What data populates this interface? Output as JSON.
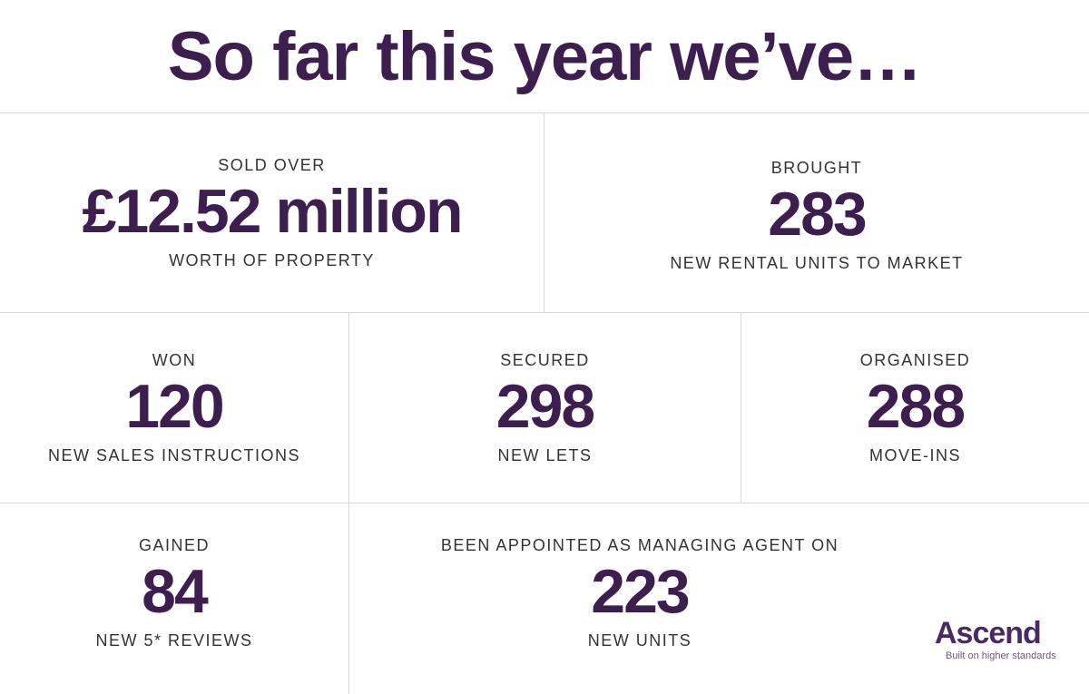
{
  "title": "So far this year we’ve…",
  "stats": {
    "sold": {
      "pre": "SOLD OVER",
      "value": "£12.52 million",
      "post": "WORTH OF PROPERTY"
    },
    "brought": {
      "pre": "BROUGHT",
      "value": "283",
      "post": "NEW RENTAL UNITS TO MARKET"
    },
    "won": {
      "pre": "WON",
      "value": "120",
      "post": "NEW SALES INSTRUCTIONS"
    },
    "secured": {
      "pre": "SECURED",
      "value": "298",
      "post": "NEW LETS"
    },
    "organised": {
      "pre": "ORGANISED",
      "value": "288",
      "post": "MOVE-INS"
    },
    "gained": {
      "pre": "GAINED",
      "value": "84",
      "post": "NEW 5* REVIEWS"
    },
    "appointed": {
      "pre": "BEEN APPOINTED AS MANAGING AGENT ON",
      "value": "223",
      "post": "NEW UNITS"
    }
  },
  "logo": {
    "name": "Ascend",
    "tagline": "Built on higher standards"
  },
  "colors": {
    "brand_purple": "#3d1f4f",
    "divider": "#d9d9d9",
    "label_text": "#333333"
  }
}
